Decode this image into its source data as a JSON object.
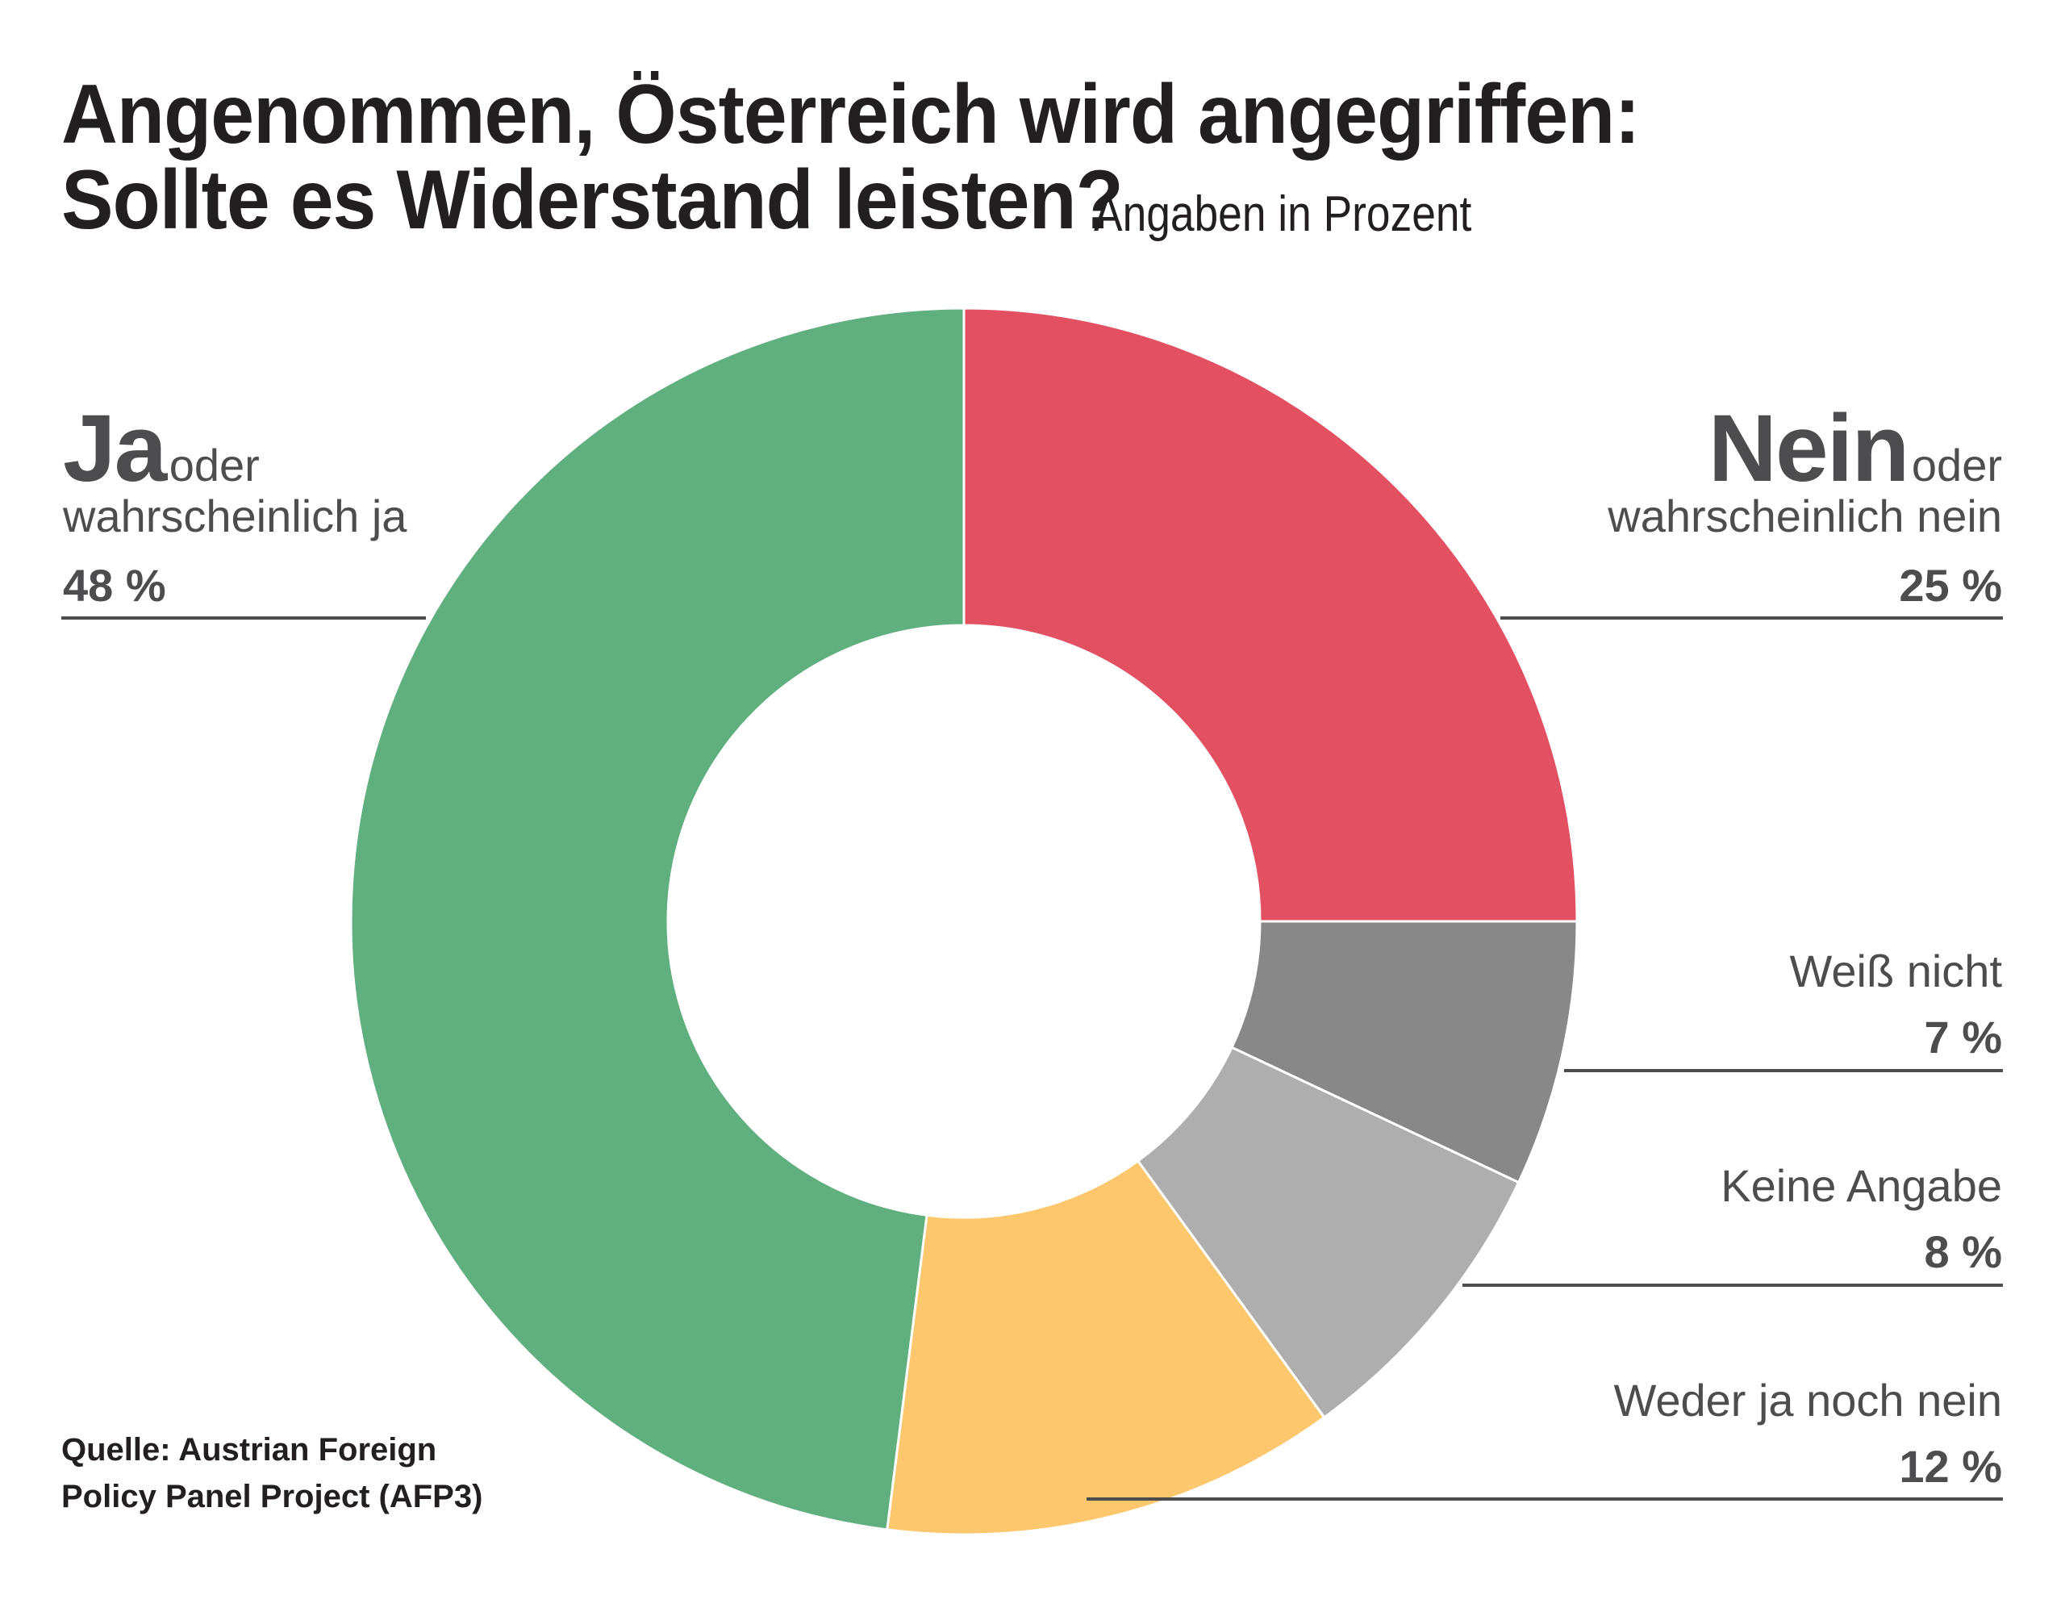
{
  "header": {
    "title_line1": "Angenommen, Österreich wird angegriffen:",
    "title_line2": "Sollte es Widerstand leisten?",
    "subtitle": "Angaben in Prozent"
  },
  "source": {
    "line1": "Quelle: Austrian Foreign",
    "line2": "Policy Panel Project (AFP3)"
  },
  "labels": {
    "ja": {
      "big": "Ja",
      "small1": "oder",
      "small2": "wahrscheinlich ja",
      "pct": "48 %"
    },
    "nein": {
      "big": "Nein",
      "small1": "oder",
      "small2": "wahrscheinlich nein",
      "pct": "25 %"
    },
    "weiss": {
      "text": "Weiß nicht",
      "pct": "7 %"
    },
    "keine": {
      "text": "Keine Angabe",
      "pct": "8 %"
    },
    "weder": {
      "text": "Weder ja noch nein",
      "pct": "12 %"
    }
  },
  "chart_data": {
    "type": "pie",
    "variant": "donut",
    "title": "Angenommen, Österreich wird angegriffen: Sollte es Widerstand leisten?",
    "subtitle": "Angaben in Prozent",
    "unit": "%",
    "start": "12 o'clock",
    "direction": "clockwise",
    "slices": [
      {
        "label": "Nein oder wahrscheinlich nein",
        "value": 25,
        "color": "#E35062"
      },
      {
        "label": "Weiß nicht",
        "value": 7,
        "color": "#888888"
      },
      {
        "label": "Keine Angabe",
        "value": 8,
        "color": "#AFAEAE"
      },
      {
        "label": "Weder ja noch nein",
        "value": 12,
        "color": "#FDC86D"
      },
      {
        "label": "Ja oder wahrscheinlich ja",
        "value": 48,
        "color": "#5FAF7F"
      }
    ],
    "source": "Quelle: Austrian Foreign Policy Panel Project (AFP3)"
  }
}
